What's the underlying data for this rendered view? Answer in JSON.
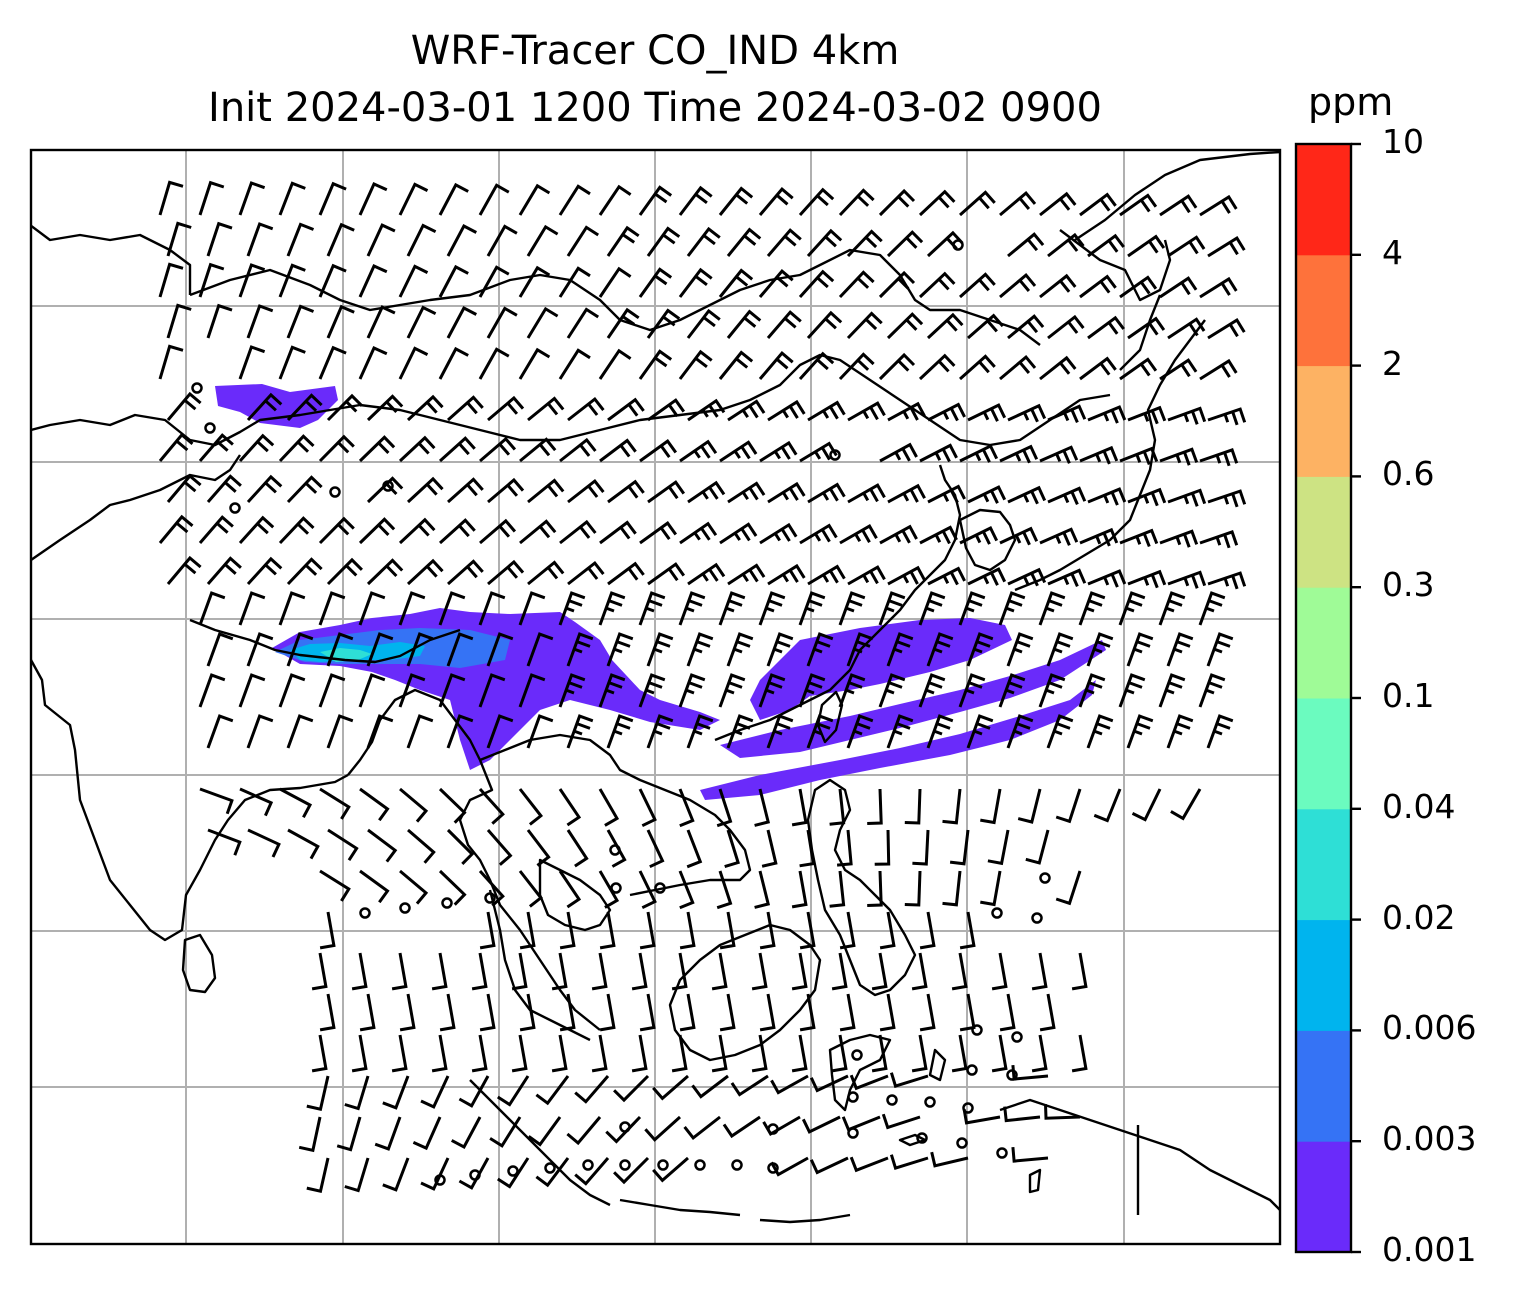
{
  "title": {
    "line1": "WRF-Tracer CO_IND 4km",
    "line2": "Init 2024-03-01 1200 Time 2024-03-02 0900"
  },
  "colorbar": {
    "units": "ppm",
    "ticks": [
      "0.001",
      "0.003",
      "0.006",
      "0.02",
      "0.04",
      "0.1",
      "0.3",
      "0.6",
      "2",
      "4",
      "10"
    ],
    "colors": [
      "#6a2bfa",
      "#3573f5",
      "#00b4ee",
      "#2edfd6",
      "#6bfbbf",
      "#9ffb97",
      "#cde383",
      "#fdb263",
      "#fe723b",
      "#ff2718"
    ]
  },
  "map": {
    "gridlines": true,
    "plume_color": "#6a2bfa",
    "plume_core_colors": [
      "#3573f5",
      "#00b4ee",
      "#2edfd6"
    ]
  }
}
